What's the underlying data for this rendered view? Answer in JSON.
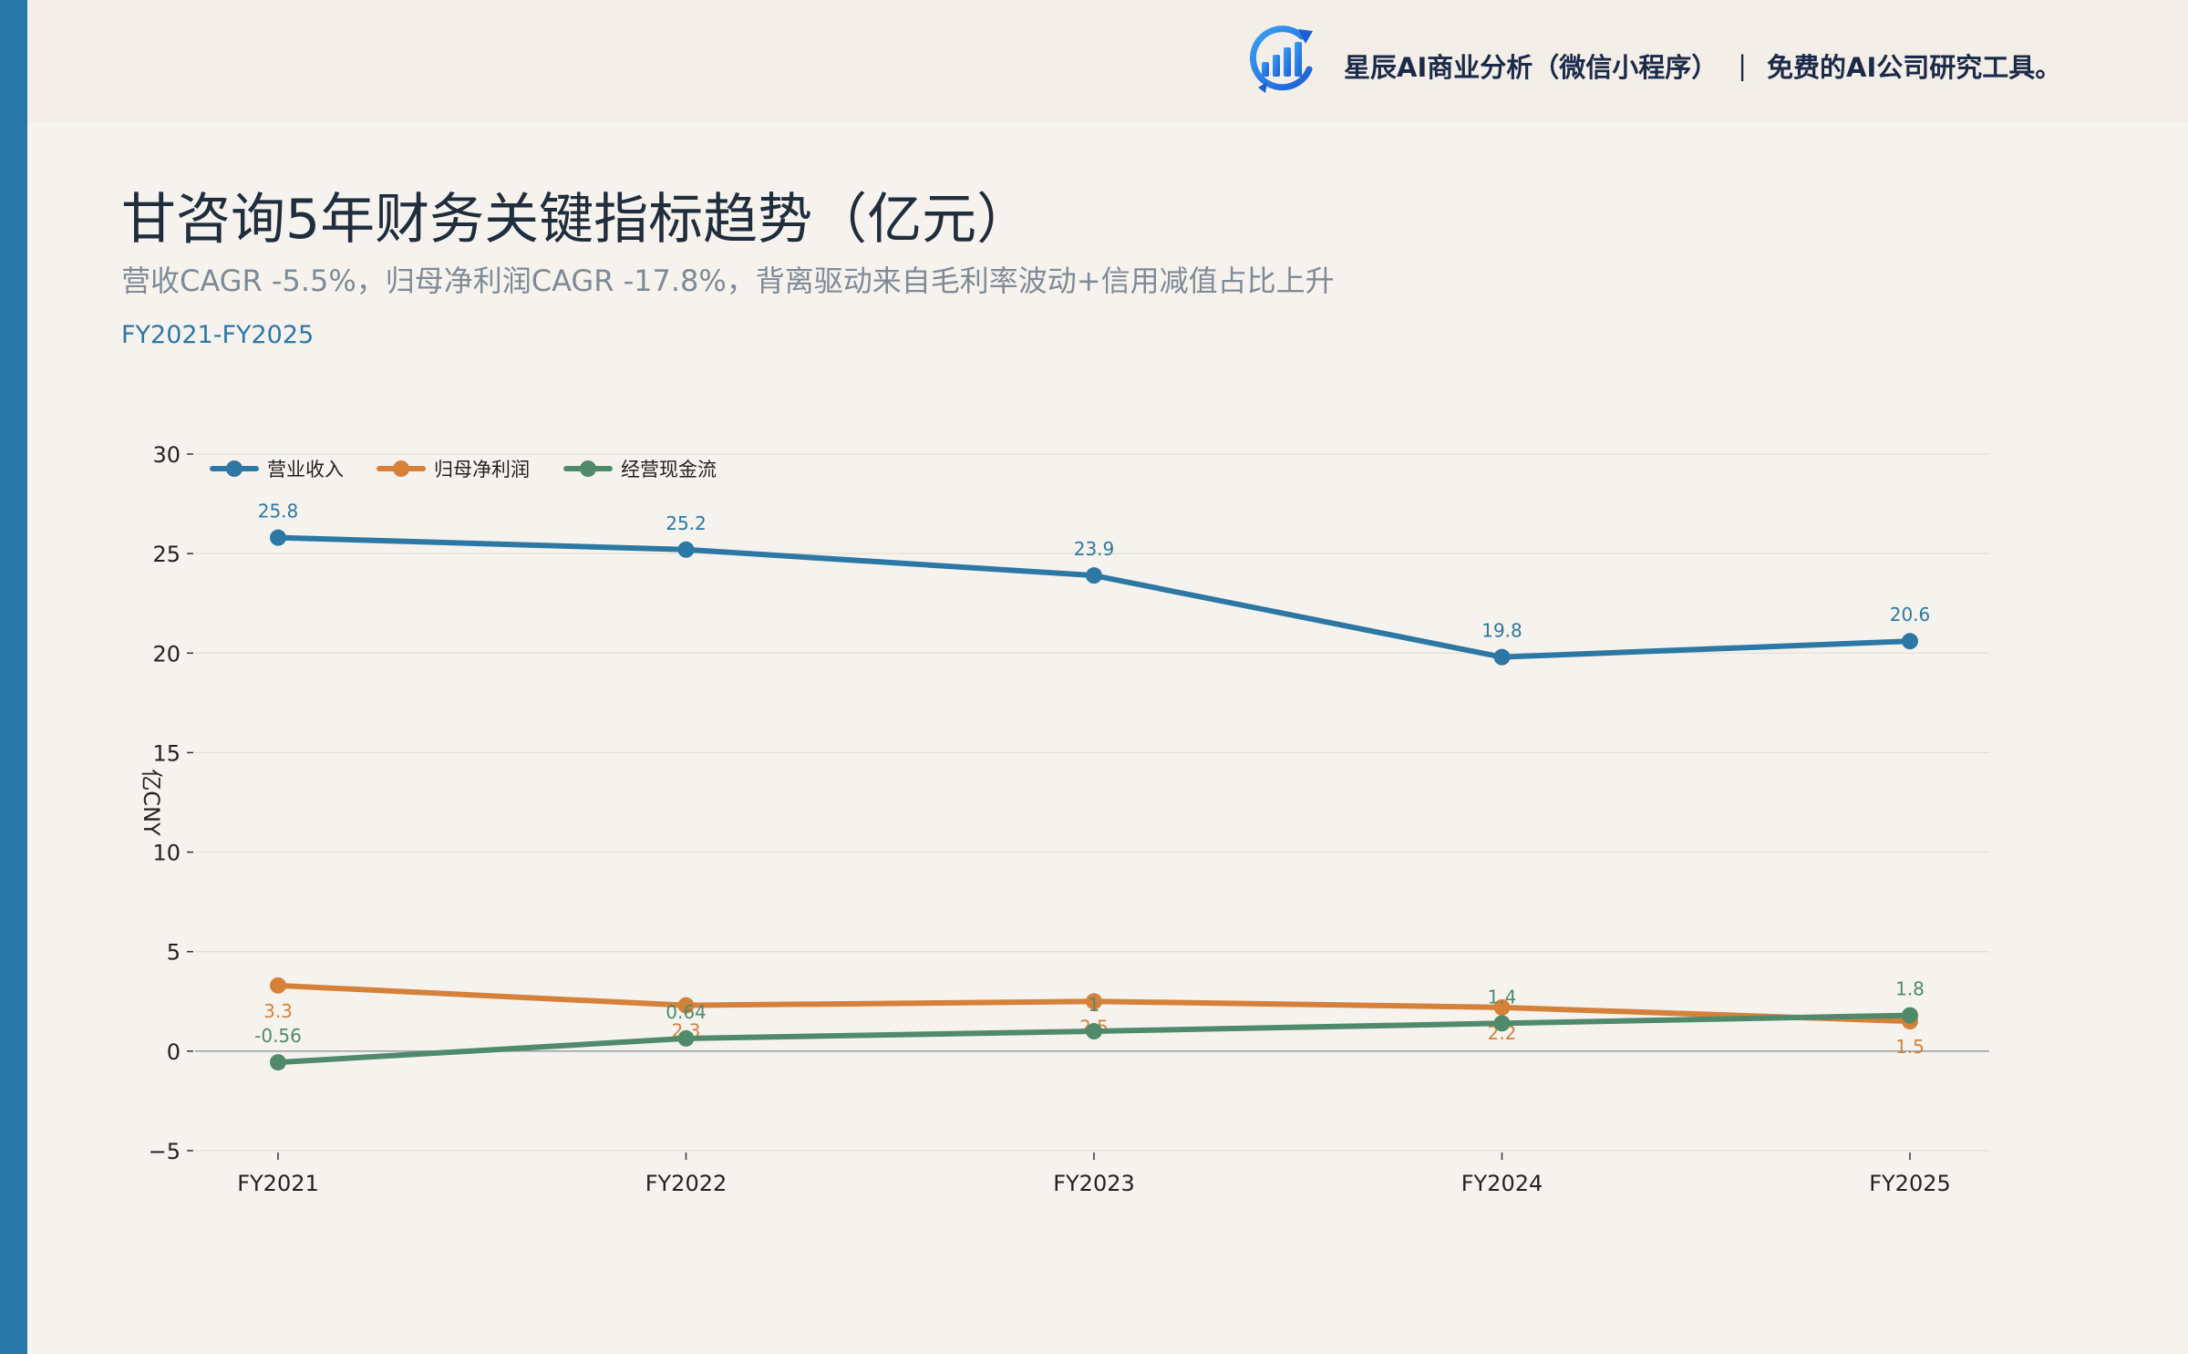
{
  "brand": {
    "name": "星辰AI商业分析（微信小程序）",
    "separator": "|",
    "tagline": "免费的AI公司研究工具。",
    "logo_icon": "bar-chart-growth-icon"
  },
  "header": {
    "title": "甘咨询5年财务关键指标趋势（亿元）",
    "subtitle": "营收CAGR -5.5%，归母净利润CAGR -17.8%，背离驱动来自毛利率波动+信用减值占比上升",
    "period": "FY2021-FY2025"
  },
  "colors": {
    "accent": "#2778a6",
    "revenue": "#2c77a4",
    "net_profit": "#d5813a",
    "cash_flow": "#4f8a6b"
  },
  "chart_data": {
    "type": "line",
    "categories": [
      "FY2021",
      "FY2022",
      "FY2023",
      "FY2024",
      "FY2025"
    ],
    "ylabel": "亿CNY",
    "ylim": [
      -5,
      30
    ],
    "yticks": [
      -5,
      0,
      5,
      10,
      15,
      20,
      25,
      30
    ],
    "ytick_labels": [
      "−5",
      "0",
      "5",
      "10",
      "15",
      "20",
      "25",
      "30"
    ],
    "grid": true,
    "legend": "top-left",
    "series": [
      {
        "name": "营业收入",
        "color": "#2c77a4",
        "values": [
          25.8,
          25.2,
          23.9,
          19.8,
          20.6
        ],
        "labels": [
          "25.8",
          "25.2",
          "23.9",
          "19.8",
          "20.6"
        ],
        "label_position": "above"
      },
      {
        "name": "归母净利润",
        "color": "#d5813a",
        "values": [
          3.3,
          2.3,
          2.5,
          2.2,
          1.5
        ],
        "labels": [
          "3.3",
          "2.3",
          "2.5",
          "2.2",
          "1.5"
        ],
        "label_position": "below"
      },
      {
        "name": "经营现金流",
        "color": "#4f8a6b",
        "values": [
          -0.56,
          0.64,
          1.0,
          1.4,
          1.8
        ],
        "labels": [
          "-0.56",
          "0.64",
          "1",
          "1.4",
          "1.8"
        ],
        "label_position": "above"
      }
    ]
  }
}
